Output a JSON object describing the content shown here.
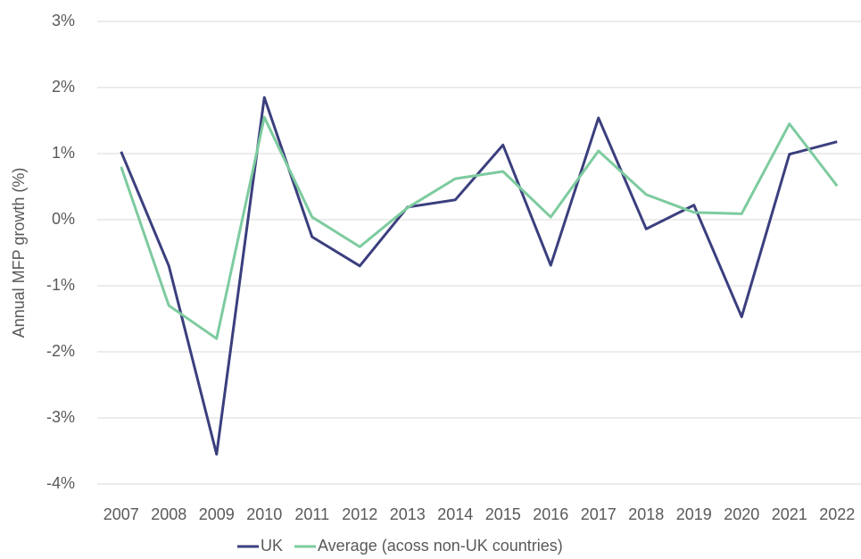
{
  "chart_data": {
    "type": "line",
    "y_label": "Annual MFP growth (%)",
    "categories": [
      "2007",
      "2008",
      "2009",
      "2010",
      "2011",
      "2012",
      "2013",
      "2014",
      "2015",
      "2016",
      "2017",
      "2018",
      "2019",
      "2020",
      "2021",
      "2022"
    ],
    "series": [
      {
        "name": "UK",
        "color": "#3b3f7e",
        "values": [
          1.03,
          -0.7,
          -3.55,
          1.85,
          -0.26,
          -0.7,
          0.19,
          0.3,
          1.13,
          -0.69,
          1.54,
          -0.14,
          0.22,
          -1.47,
          0.99,
          1.18
        ]
      },
      {
        "name": "Average (acoss non-UK countries)",
        "color": "#7dcb9f",
        "values": [
          0.8,
          -1.3,
          -1.8,
          1.55,
          0.04,
          -0.41,
          0.18,
          0.62,
          0.73,
          0.04,
          1.04,
          0.38,
          0.11,
          0.09,
          1.45,
          0.51
        ]
      }
    ],
    "ylim": [
      -4,
      3
    ],
    "yticks": [
      {
        "value": -4,
        "label": "-4%"
      },
      {
        "value": -3,
        "label": "-3%"
      },
      {
        "value": -2,
        "label": "-2%"
      },
      {
        "value": -1,
        "label": "-1%"
      },
      {
        "value": 0,
        "label": "0%"
      },
      {
        "value": 1,
        "label": "1%"
      },
      {
        "value": 2,
        "label": "2%"
      },
      {
        "value": 3,
        "label": "3%"
      }
    ],
    "grid": true,
    "legend": "bottom"
  }
}
